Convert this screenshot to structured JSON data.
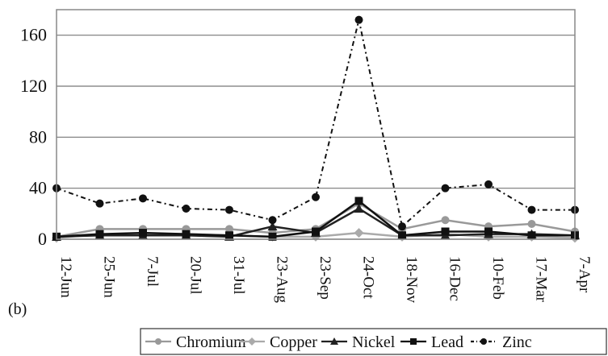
{
  "panel_label": "(b)",
  "chart_data": {
    "type": "line",
    "title": "",
    "xlabel": "",
    "ylabel": "",
    "categories": [
      "12-Jun",
      "25-Jun",
      "7-Jul",
      "20-Jul",
      "31-Jul",
      "23-Aug",
      "23-Sep",
      "24-Oct",
      "18-Nov",
      "16-Dec",
      "10-Feb",
      "17-Mar",
      "7-Apr"
    ],
    "ylim": [
      0,
      180
    ],
    "yticks": [
      "0",
      "40",
      "80",
      "120",
      "160"
    ],
    "grid": "horizontal",
    "legend_position": "bottom",
    "series": [
      {
        "name": "Chromium",
        "values": [
          2,
          8,
          8,
          8,
          8,
          5,
          8,
          28,
          8,
          15,
          10,
          12,
          6
        ],
        "color": "#999999",
        "marker": "circle",
        "dash": "solid"
      },
      {
        "name": "Copper",
        "values": [
          1,
          4,
          4,
          4,
          3,
          2,
          2,
          5,
          2,
          4,
          2,
          2,
          1
        ],
        "color": "#aaaaaa",
        "marker": "diamond",
        "dash": "solid"
      },
      {
        "name": "Nickel",
        "values": [
          2,
          3,
          3,
          3,
          2,
          10,
          5,
          24,
          3,
          3,
          4,
          4,
          3
        ],
        "color": "#222222",
        "marker": "triangle",
        "dash": "solid"
      },
      {
        "name": "Lead",
        "values": [
          2,
          4,
          5,
          4,
          3,
          2,
          6,
          30,
          3,
          6,
          6,
          3,
          3
        ],
        "color": "#111111",
        "marker": "square",
        "dash": "solid"
      },
      {
        "name": "Zinc",
        "values": [
          40,
          28,
          32,
          24,
          23,
          15,
          33,
          172,
          10,
          40,
          43,
          23,
          23
        ],
        "color": "#111111",
        "marker": "circle",
        "dash": "dashdot"
      }
    ]
  }
}
